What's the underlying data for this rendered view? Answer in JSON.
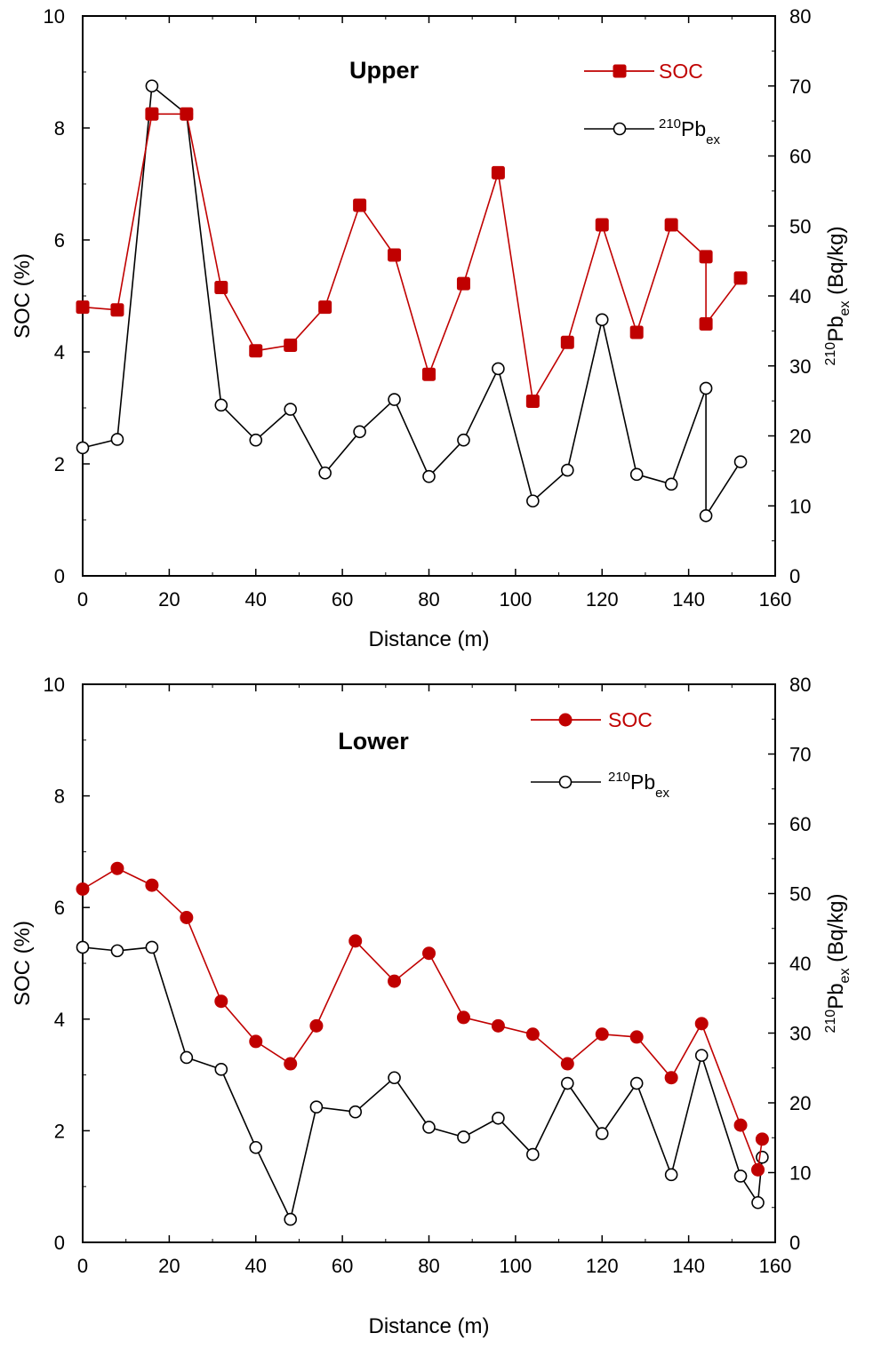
{
  "chart_data": [
    {
      "type": "line",
      "title": "Upper",
      "xlabel": "Distance (m)",
      "ylabel": "SOC (%)",
      "y2label_sup": "210",
      "y2label_main": "Pb",
      "y2label_sub": "ex",
      "y2label_unit": " (Bq/kg)",
      "xlim": [
        0,
        160
      ],
      "ylim": [
        0,
        10
      ],
      "y2lim": [
        0,
        80
      ],
      "xticks": [
        "0",
        "20",
        "40",
        "60",
        "80",
        "100",
        "120",
        "140",
        "160"
      ],
      "yticks": [
        "0",
        "2",
        "4",
        "6",
        "8",
        "10"
      ],
      "y2ticks": [
        "0",
        "10",
        "20",
        "30",
        "40",
        "50",
        "60",
        "70",
        "80"
      ],
      "series": [
        {
          "name": "SOC",
          "legend_label": "SOC",
          "axis": "left",
          "color": "#c00000",
          "marker": "filled-square",
          "x": [
            0,
            8,
            16,
            24,
            32,
            40,
            48,
            56,
            64,
            72,
            80,
            88,
            96,
            104,
            112,
            120,
            128,
            136,
            144,
            144,
            152
          ],
          "y": [
            4.8,
            4.75,
            8.25,
            8.25,
            5.15,
            4.02,
            4.12,
            4.8,
            6.62,
            5.73,
            3.6,
            5.22,
            7.2,
            3.12,
            4.17,
            6.27,
            4.35,
            6.27,
            5.7,
            4.5,
            5.32
          ]
        },
        {
          "name": "210Pbex",
          "legend_sup": "210",
          "legend_main": "Pb",
          "legend_sub": "ex",
          "axis": "right",
          "color": "#000000",
          "marker": "open-circle",
          "x": [
            0,
            8,
            16,
            24,
            32,
            40,
            48,
            56,
            64,
            72,
            80,
            88,
            96,
            104,
            112,
            120,
            128,
            136,
            144,
            144,
            152
          ],
          "y": [
            18.3,
            19.5,
            70.0,
            66.0,
            24.4,
            19.4,
            23.8,
            14.7,
            20.6,
            25.2,
            14.2,
            19.4,
            29.6,
            10.7,
            15.1,
            36.6,
            14.5,
            13.1,
            26.8,
            8.6,
            16.3
          ]
        }
      ]
    },
    {
      "type": "line",
      "title": "Lower",
      "xlabel": "Distance (m)",
      "ylabel": "SOC (%)",
      "y2label_sup": "210",
      "y2label_main": "Pb",
      "y2label_sub": "ex",
      "y2label_unit": " (Bq/kg)",
      "xlim": [
        0,
        160
      ],
      "ylim": [
        0,
        10
      ],
      "y2lim": [
        0,
        80
      ],
      "xticks": [
        "0",
        "20",
        "40",
        "60",
        "80",
        "100",
        "120",
        "140",
        "160"
      ],
      "yticks": [
        "0",
        "2",
        "4",
        "6",
        "8",
        "10"
      ],
      "y2ticks": [
        "0",
        "10",
        "20",
        "30",
        "40",
        "50",
        "60",
        "70",
        "80"
      ],
      "series": [
        {
          "name": "SOC",
          "legend_label": "SOC",
          "axis": "left",
          "color": "#c00000",
          "marker": "filled-circle",
          "x": [
            0,
            8,
            16,
            24,
            32,
            40,
            48,
            54,
            63,
            72,
            80,
            88,
            96,
            104,
            112,
            120,
            128,
            136,
            143,
            152,
            156,
            157
          ],
          "y": [
            6.33,
            6.7,
            6.4,
            5.82,
            4.32,
            3.6,
            3.2,
            3.88,
            5.4,
            4.68,
            5.18,
            4.03,
            3.88,
            3.73,
            3.2,
            3.73,
            3.68,
            2.95,
            3.92,
            2.1,
            1.3,
            1.85
          ]
        },
        {
          "name": "210Pbex",
          "legend_sup": "210",
          "legend_main": "Pb",
          "legend_sub": "ex",
          "axis": "right",
          "color": "#000000",
          "marker": "open-circle",
          "x": [
            0,
            8,
            16,
            24,
            32,
            40,
            48,
            54,
            63,
            72,
            80,
            88,
            96,
            104,
            112,
            120,
            128,
            136,
            143,
            152,
            156,
            157
          ],
          "y": [
            42.3,
            41.8,
            42.3,
            26.5,
            24.8,
            13.6,
            3.3,
            19.4,
            18.7,
            23.6,
            16.5,
            15.1,
            17.8,
            12.6,
            22.8,
            15.6,
            22.8,
            9.7,
            26.8,
            9.5,
            5.7,
            12.2
          ]
        }
      ]
    }
  ]
}
